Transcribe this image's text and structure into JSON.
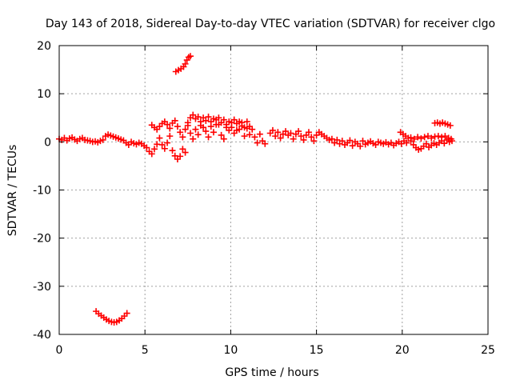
{
  "chart_data": {
    "type": "scatter",
    "title": "Day 143 of 2018, Sidereal Day-to-day VTEC variation (SDTVAR) for receiver clgo",
    "xlabel": "GPS time / hours",
    "ylabel": "SDTVAR / TECUs",
    "xlim": [
      0,
      25
    ],
    "ylim": [
      -40,
      20
    ],
    "xticks": [
      "0",
      "5",
      "10",
      "15",
      "20",
      "25"
    ],
    "yticks": [
      "-40",
      "-30",
      "-20",
      "-10",
      "0",
      "10",
      "20"
    ],
    "grid": true,
    "marker": "plus",
    "color": "#ff0000",
    "series": [
      {
        "name": "clgo",
        "points": [
          [
            0.0,
            0.6
          ],
          [
            0.15,
            0.4
          ],
          [
            0.3,
            0.8
          ],
          [
            0.45,
            0.3
          ],
          [
            0.6,
            0.7
          ],
          [
            0.75,
            0.9
          ],
          [
            0.9,
            0.5
          ],
          [
            1.05,
            0.2
          ],
          [
            1.2,
            0.6
          ],
          [
            1.35,
            0.8
          ],
          [
            1.5,
            0.4
          ],
          [
            1.65,
            0.3
          ],
          [
            1.8,
            0.2
          ],
          [
            1.95,
            0.0
          ],
          [
            2.1,
            0.1
          ],
          [
            2.25,
            -0.1
          ],
          [
            2.4,
            0.2
          ],
          [
            2.55,
            0.4
          ],
          [
            2.7,
            1.2
          ],
          [
            2.85,
            1.5
          ],
          [
            3.0,
            1.3
          ],
          [
            3.15,
            1.1
          ],
          [
            3.3,
            0.9
          ],
          [
            3.45,
            0.7
          ],
          [
            3.6,
            0.5
          ],
          [
            3.75,
            0.3
          ],
          [
            3.9,
            -0.2
          ],
          [
            4.05,
            -0.6
          ],
          [
            4.2,
            0.0
          ],
          [
            4.35,
            -0.3
          ],
          [
            4.5,
            -0.5
          ],
          [
            4.65,
            -0.2
          ],
          [
            4.8,
            -0.4
          ],
          [
            4.95,
            -0.8
          ],
          [
            5.1,
            -1.2
          ],
          [
            5.25,
            -2.0
          ],
          [
            5.4,
            -2.5
          ],
          [
            5.55,
            -1.5
          ],
          [
            5.7,
            -0.5
          ],
          [
            5.85,
            0.8
          ],
          [
            6.0,
            -0.6
          ],
          [
            6.15,
            -1.4
          ],
          [
            6.3,
            -0.2
          ],
          [
            6.45,
            1.2
          ],
          [
            6.6,
            -1.8
          ],
          [
            6.75,
            -2.9
          ],
          [
            6.9,
            -3.6
          ],
          [
            7.05,
            -3.0
          ],
          [
            7.2,
            -1.5
          ],
          [
            7.35,
            -2.2
          ],
          [
            5.4,
            3.5
          ],
          [
            5.55,
            3.0
          ],
          [
            5.7,
            2.6
          ],
          [
            5.85,
            3.2
          ],
          [
            6.0,
            3.8
          ],
          [
            6.15,
            4.2
          ],
          [
            6.3,
            3.6
          ],
          [
            6.45,
            2.8
          ],
          [
            6.6,
            3.9
          ],
          [
            6.75,
            4.4
          ],
          [
            6.9,
            3.2
          ],
          [
            7.05,
            2.0
          ],
          [
            7.2,
            1.0
          ],
          [
            7.35,
            2.6
          ],
          [
            7.5,
            3.4
          ],
          [
            7.65,
            1.8
          ],
          [
            7.8,
            0.6
          ],
          [
            7.95,
            2.6
          ],
          [
            8.1,
            1.5
          ],
          [
            8.25,
            4.2
          ],
          [
            8.4,
            3.0
          ],
          [
            8.55,
            2.2
          ],
          [
            8.7,
            1.0
          ],
          [
            8.85,
            3.2
          ],
          [
            9.0,
            2.0
          ],
          [
            9.15,
            4.6
          ],
          [
            9.3,
            3.6
          ],
          [
            9.45,
            1.4
          ],
          [
            9.6,
            0.6
          ],
          [
            9.75,
            3.0
          ],
          [
            9.9,
            2.4
          ],
          [
            10.05,
            4.0
          ],
          [
            10.2,
            1.8
          ],
          [
            10.35,
            2.4
          ],
          [
            10.5,
            4.2
          ],
          [
            10.65,
            3.3
          ],
          [
            10.8,
            1.2
          ],
          [
            10.95,
            2.8
          ],
          [
            11.1,
            1.5
          ],
          [
            11.25,
            2.6
          ],
          [
            11.4,
            1.0
          ],
          [
            11.55,
            -0.2
          ],
          [
            11.7,
            1.6
          ],
          [
            11.85,
            0.2
          ],
          [
            12.0,
            -0.4
          ],
          [
            7.5,
            4.0
          ],
          [
            7.65,
            5.0
          ],
          [
            7.8,
            5.6
          ],
          [
            7.95,
            4.8
          ],
          [
            8.1,
            5.2
          ],
          [
            8.25,
            3.4
          ],
          [
            8.4,
            5.0
          ],
          [
            8.55,
            4.4
          ],
          [
            8.7,
            5.2
          ],
          [
            8.85,
            4.2
          ],
          [
            9.0,
            4.8
          ],
          [
            9.15,
            3.6
          ],
          [
            9.3,
            5.0
          ],
          [
            9.45,
            4.0
          ],
          [
            9.6,
            4.6
          ],
          [
            9.75,
            3.6
          ],
          [
            9.9,
            4.2
          ],
          [
            10.05,
            3.0
          ],
          [
            10.2,
            4.6
          ],
          [
            10.35,
            3.8
          ],
          [
            10.5,
            2.6
          ],
          [
            10.65,
            4.0
          ],
          [
            10.8,
            3.0
          ],
          [
            10.95,
            4.2
          ],
          [
            11.1,
            3.2
          ],
          [
            12.3,
            1.8
          ],
          [
            12.45,
            2.4
          ],
          [
            12.6,
            1.2
          ],
          [
            12.75,
            2.0
          ],
          [
            12.9,
            0.8
          ],
          [
            13.05,
            1.6
          ],
          [
            13.2,
            2.2
          ],
          [
            13.35,
            1.4
          ],
          [
            13.5,
            1.8
          ],
          [
            13.65,
            0.6
          ],
          [
            13.8,
            1.6
          ],
          [
            13.95,
            2.2
          ],
          [
            14.1,
            1.2
          ],
          [
            14.25,
            0.4
          ],
          [
            14.4,
            1.4
          ],
          [
            14.55,
            2.0
          ],
          [
            14.7,
            1.0
          ],
          [
            14.85,
            0.2
          ],
          [
            15.0,
            1.4
          ],
          [
            15.15,
            2.0
          ],
          [
            15.3,
            1.6
          ],
          [
            15.45,
            1.2
          ],
          [
            15.6,
            0.8
          ],
          [
            15.75,
            0.4
          ],
          [
            15.9,
            0.6
          ],
          [
            16.05,
            -0.2
          ],
          [
            16.2,
            0.4
          ],
          [
            16.35,
            -0.4
          ],
          [
            16.5,
            0.2
          ],
          [
            16.65,
            -0.6
          ],
          [
            16.8,
            -0.2
          ],
          [
            16.95,
            0.3
          ],
          [
            17.1,
            -0.8
          ],
          [
            17.25,
            0.0
          ],
          [
            17.4,
            -0.4
          ],
          [
            17.55,
            -0.9
          ],
          [
            17.7,
            0.2
          ],
          [
            17.85,
            -0.5
          ],
          [
            18.0,
            -0.2
          ],
          [
            18.15,
            0.1
          ],
          [
            18.3,
            -0.3
          ],
          [
            18.45,
            -0.6
          ],
          [
            18.6,
            0.0
          ],
          [
            18.75,
            -0.2
          ],
          [
            18.9,
            -0.4
          ],
          [
            19.05,
            -0.1
          ],
          [
            19.2,
            -0.5
          ],
          [
            19.35,
            -0.2
          ],
          [
            19.5,
            -0.7
          ],
          [
            19.65,
            -0.3
          ],
          [
            19.8,
            0.0
          ],
          [
            19.95,
            -0.4
          ],
          [
            20.1,
            0.2
          ],
          [
            20.25,
            -0.2
          ],
          [
            19.9,
            2.0
          ],
          [
            20.05,
            1.6
          ],
          [
            20.2,
            1.2
          ],
          [
            20.35,
            0.8
          ],
          [
            20.5,
            0.2
          ],
          [
            20.65,
            -0.6
          ],
          [
            20.8,
            -1.2
          ],
          [
            20.95,
            -1.6
          ],
          [
            21.1,
            -1.4
          ],
          [
            21.25,
            -0.9
          ],
          [
            21.4,
            -0.4
          ],
          [
            21.55,
            -1.1
          ],
          [
            21.7,
            -0.7
          ],
          [
            21.85,
            -0.3
          ],
          [
            22.0,
            -0.6
          ],
          [
            22.15,
            -0.2
          ],
          [
            22.3,
            0.2
          ],
          [
            22.45,
            -0.3
          ],
          [
            22.6,
            0.4
          ],
          [
            22.75,
            0.0
          ],
          [
            20.5,
            0.9
          ],
          [
            20.7,
            0.6
          ],
          [
            20.9,
            1.0
          ],
          [
            21.1,
            0.7
          ],
          [
            21.3,
            1.0
          ],
          [
            21.5,
            1.2
          ],
          [
            21.7,
            0.8
          ],
          [
            21.9,
            1.1
          ],
          [
            22.1,
            1.2
          ],
          [
            22.3,
            1.0
          ],
          [
            22.5,
            1.2
          ],
          [
            22.7,
            0.8
          ],
          [
            22.85,
            0.6
          ],
          [
            22.9,
            0.2
          ],
          [
            21.9,
            3.9
          ],
          [
            22.05,
            4.0
          ],
          [
            22.2,
            3.8
          ],
          [
            22.35,
            4.0
          ],
          [
            22.5,
            3.8
          ],
          [
            22.65,
            3.6
          ],
          [
            22.8,
            3.4
          ],
          [
            6.8,
            14.6
          ],
          [
            6.95,
            14.9
          ],
          [
            7.1,
            15.2
          ],
          [
            7.25,
            15.6
          ],
          [
            7.35,
            16.2
          ],
          [
            7.45,
            17.0
          ],
          [
            7.55,
            17.6
          ],
          [
            7.65,
            17.8
          ],
          [
            2.15,
            -35.2
          ],
          [
            2.3,
            -35.7
          ],
          [
            2.45,
            -36.1
          ],
          [
            2.6,
            -36.5
          ],
          [
            2.75,
            -36.9
          ],
          [
            2.9,
            -37.2
          ],
          [
            3.05,
            -37.4
          ],
          [
            3.2,
            -37.5
          ],
          [
            3.35,
            -37.4
          ],
          [
            3.5,
            -37.1
          ],
          [
            3.65,
            -36.7
          ],
          [
            3.8,
            -36.2
          ],
          [
            3.95,
            -35.6
          ]
        ]
      }
    ]
  }
}
